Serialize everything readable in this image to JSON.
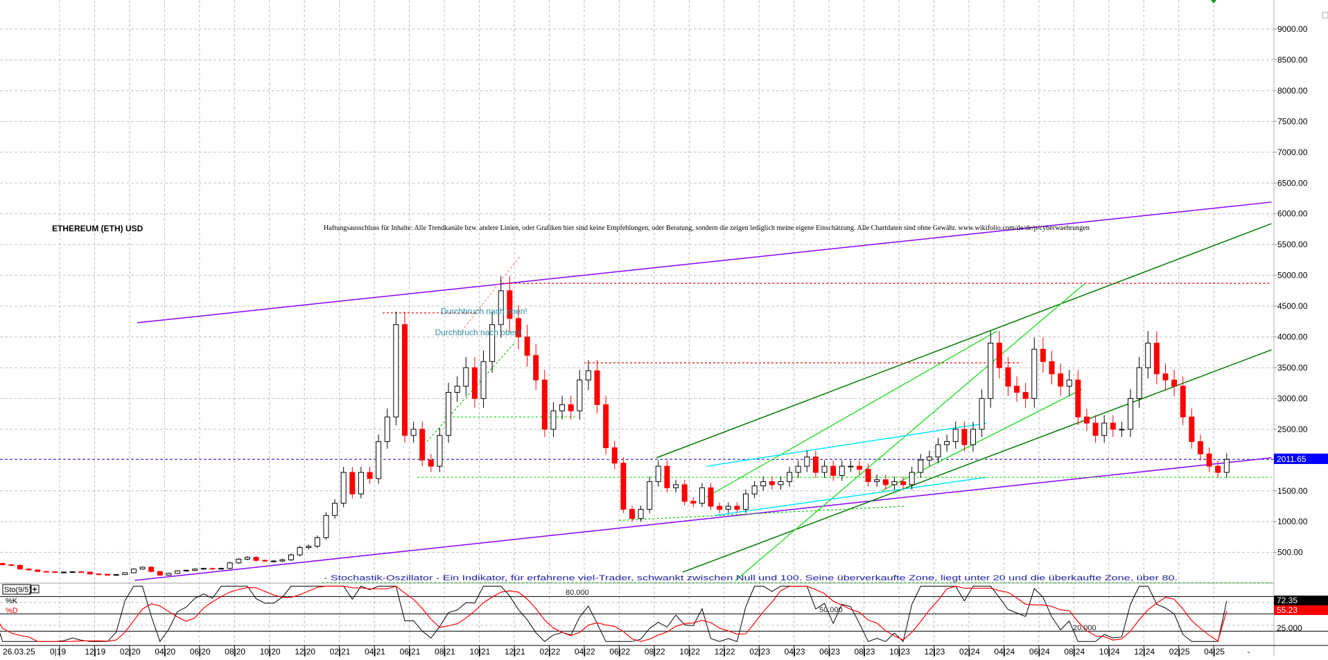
{
  "chart_data": {
    "type": "candlestick",
    "title": "ETHEREUM (ETH) USD",
    "disclaimer": "Haftungsausschluss für Inhalte: Alle Trendkanäle bzw. andere Linien, oder Grafiken hier sind keine Empfehlungen, oder Beratung, sondern die zeigen lediglich meine eigene Einschätzung. Alle Chartdaten sind ohne Gewähr.  www.wikifolio.com/de/de/p/cyberwaehrungen",
    "last_price": 2011.65,
    "last_price_label": "2011.65",
    "ylim": [
      0,
      9400
    ],
    "y_ticks": [
      "9000.00",
      "8500.00",
      "8000.00",
      "7500.00",
      "7000.00",
      "6500.00",
      "6000.00",
      "5500.00",
      "5000.00",
      "4500.00",
      "4000.00",
      "3500.00",
      "3000.00",
      "2500.00",
      "1500.00",
      "1000.00",
      "500.00"
    ],
    "x_ticks": [
      {
        "label": "26.03.25",
        "date": "2019-06-20"
      },
      {
        "label": "0|19",
        "date": "2019-10-01"
      },
      {
        "label": "12|19",
        "date": "2019-12-01"
      },
      {
        "label": "02|20",
        "date": "2020-02-01"
      },
      {
        "label": "04|20",
        "date": "2020-04-01"
      },
      {
        "label": "06|20",
        "date": "2020-06-01"
      },
      {
        "label": "08|20",
        "date": "2020-08-01"
      },
      {
        "label": "10|20",
        "date": "2020-10-01"
      },
      {
        "label": "12|20",
        "date": "2020-12-01"
      },
      {
        "label": "02|21",
        "date": "2021-02-01"
      },
      {
        "label": "04|21",
        "date": "2021-04-01"
      },
      {
        "label": "06|21",
        "date": "2021-06-01"
      },
      {
        "label": "08|21",
        "date": "2021-08-01"
      },
      {
        "label": "10|21",
        "date": "2021-10-01"
      },
      {
        "label": "12|21",
        "date": "2021-12-01"
      },
      {
        "label": "02|22",
        "date": "2022-02-01"
      },
      {
        "label": "04|22",
        "date": "2022-04-01"
      },
      {
        "label": "06|22",
        "date": "2022-06-01"
      },
      {
        "label": "08|22",
        "date": "2022-08-01"
      },
      {
        "label": "10|22",
        "date": "2022-10-01"
      },
      {
        "label": "12|22",
        "date": "2022-12-01"
      },
      {
        "label": "02|23",
        "date": "2023-02-01"
      },
      {
        "label": "04|23",
        "date": "2023-04-01"
      },
      {
        "label": "06|23",
        "date": "2023-06-01"
      },
      {
        "label": "08|23",
        "date": "2023-08-01"
      },
      {
        "label": "10|23",
        "date": "2023-10-01"
      },
      {
        "label": "12|23",
        "date": "2023-12-01"
      },
      {
        "label": "02|24",
        "date": "2024-02-01"
      },
      {
        "label": "04|24",
        "date": "2024-04-01"
      },
      {
        "label": "06|24",
        "date": "2024-06-01"
      },
      {
        "label": "08|24",
        "date": "2024-08-01"
      },
      {
        "label": "10|24",
        "date": "2024-10-01"
      },
      {
        "label": "12|24",
        "date": "2024-12-01"
      },
      {
        "label": "02|25",
        "date": "2025-02-01"
      },
      {
        "label": "04|25",
        "date": "2025-04-01"
      },
      {
        "label": "-",
        "date": "2025-06-15"
      }
    ],
    "price_series": {
      "months": [
        "2019-06",
        "2019-07",
        "2019-08",
        "2019-09",
        "2019-10",
        "2019-11",
        "2019-12",
        "2020-01",
        "2020-02",
        "2020-03",
        "2020-04",
        "2020-05",
        "2020-06",
        "2020-07",
        "2020-08",
        "2020-09",
        "2020-10",
        "2020-11",
        "2020-12",
        "2021-01",
        "2021-02",
        "2021-03",
        "2021-04",
        "2021-05",
        "2021-06",
        "2021-07",
        "2021-08",
        "2021-09",
        "2021-10",
        "2021-11",
        "2021-12",
        "2022-01",
        "2022-02",
        "2022-03",
        "2022-04",
        "2022-05",
        "2022-06",
        "2022-07",
        "2022-08",
        "2022-09",
        "2022-10",
        "2022-11",
        "2022-12",
        "2023-01",
        "2023-02",
        "2023-03",
        "2023-04",
        "2023-05",
        "2023-06",
        "2023-07",
        "2023-08",
        "2023-09",
        "2023-10",
        "2023-11",
        "2023-12",
        "2024-01",
        "2024-02",
        "2024-03",
        "2024-04",
        "2024-05",
        "2024-06",
        "2024-07",
        "2024-08",
        "2024-09",
        "2024-10",
        "2024-11",
        "2024-12",
        "2025-01",
        "2025-02",
        "2025-03",
        "2025-04"
      ],
      "closes": [
        [
          320,
          300
        ],
        [
          290,
          230
        ],
        [
          215,
          190
        ],
        [
          185,
          175
        ],
        [
          180,
          185
        ],
        [
          180,
          150
        ],
        [
          145,
          130
        ],
        [
          140,
          170
        ],
        [
          230,
          260
        ],
        [
          190,
          130
        ],
        [
          160,
          200
        ],
        [
          210,
          230
        ],
        [
          240,
          230
        ],
        [
          240,
          330
        ],
        [
          390,
          420
        ],
        [
          370,
          360
        ],
        [
          360,
          380
        ],
        [
          460,
          580
        ],
        [
          600,
          740
        ],
        [
          1100,
          1300
        ],
        [
          1800,
          1450
        ],
        [
          1800,
          1700
        ],
        [
          2300,
          2700
        ],
        [
          4200,
          2400
        ],
        [
          2500,
          2000
        ],
        [
          1900,
          2400
        ],
        [
          3100,
          3200
        ],
        [
          3500,
          3000
        ],
        [
          3600,
          4200
        ],
        [
          4750,
          4300
        ],
        [
          4000,
          3700
        ],
        [
          3300,
          2500
        ],
        [
          2800,
          2900
        ],
        [
          2800,
          3300
        ],
        [
          3450,
          2900
        ],
        [
          2200,
          1950
        ],
        [
          1200,
          1050
        ],
        [
          1200,
          1650
        ],
        [
          1900,
          1550
        ],
        [
          1600,
          1330
        ],
        [
          1300,
          1550
        ],
        [
          1250,
          1200
        ],
        [
          1250,
          1200
        ],
        [
          1450,
          1580
        ],
        [
          1650,
          1600
        ],
        [
          1650,
          1800
        ],
        [
          1900,
          2050
        ],
        [
          1800,
          1900
        ],
        [
          1750,
          1900
        ],
        [
          1900,
          1850
        ],
        [
          1650,
          1680
        ],
        [
          1600,
          1650
        ],
        [
          1600,
          1800
        ],
        [
          2000,
          2050
        ],
        [
          2250,
          2300
        ],
        [
          2500,
          2250
        ],
        [
          2500,
          3000
        ],
        [
          3900,
          3500
        ],
        [
          3200,
          3100
        ],
        [
          3000,
          3800
        ],
        [
          3600,
          3400
        ],
        [
          3200,
          3300
        ],
        [
          2700,
          2600
        ],
        [
          2400,
          2600
        ],
        [
          2500,
          2500
        ],
        [
          3000,
          3500
        ],
        [
          3900,
          3400
        ],
        [
          3300,
          3200
        ],
        [
          2700,
          2300
        ],
        [
          2100,
          1900
        ],
        [
          1800,
          2011.65
        ]
      ]
    },
    "trendlines": [
      {
        "color": "#8a00ff",
        "style": "solid",
        "from": [
          "2020-02-14",
          4230
        ],
        "to": [
          "2025-07-10",
          6190
        ]
      },
      {
        "color": "#8a00ff",
        "style": "solid",
        "from": [
          "2020-02-10",
          46
        ],
        "to": [
          "2025-07-10",
          2037
        ]
      },
      {
        "color": "#007a00",
        "style": "solid",
        "from": [
          "2022-08-05",
          2037
        ],
        "to": [
          "2025-07-10",
          5840
        ]
      },
      {
        "color": "#007a00",
        "style": "solid",
        "from": [
          "2022-09-20",
          180
        ],
        "to": [
          "2025-07-10",
          3790
        ]
      },
      {
        "color": "#33dd33",
        "style": "solid",
        "from": [
          "2022-12-20",
          40
        ],
        "to": [
          "2024-08-20",
          4870
        ]
      },
      {
        "color": "#33dd33",
        "style": "solid",
        "from": [
          "2022-11-01",
          1400
        ],
        "to": [
          "2024-03-20",
          4100
        ]
      },
      {
        "color": "#33dd33",
        "style": "solid",
        "from": [
          "2023-09-01",
          1500
        ],
        "to": [
          "2024-08-15",
          3150
        ]
      },
      {
        "color": "#00e5ff",
        "style": "solid",
        "from": [
          "2022-11-01",
          1900
        ],
        "to": [
          "2024-03-01",
          2600
        ]
      },
      {
        "color": "#00e5ff",
        "style": "solid",
        "from": [
          "2022-11-15",
          1100
        ],
        "to": [
          "2024-03-01",
          1720
        ]
      },
      {
        "color": "#00cc00",
        "style": "dotted",
        "from": [
          "2022-06-01",
          1020
        ],
        "to": [
          "2023-10-10",
          1250
        ]
      },
      {
        "color": "#00cc00",
        "style": "dotted",
        "from": [
          "2021-07-01",
          2300
        ],
        "to": [
          "2021-12-01",
          3900
        ]
      },
      {
        "color": "#ff8080",
        "style": "dotted",
        "from": [
          "2021-09-01",
          4100
        ],
        "to": [
          "2021-12-10",
          5300
        ]
      },
      {
        "color": "#e00000",
        "style": "dotted",
        "from": [
          "2021-11-10",
          4870
        ],
        "to": [
          "2025-07-10",
          4870
        ]
      },
      {
        "color": "#e00000",
        "style": "dotted",
        "from": [
          "2022-04-01",
          3580
        ],
        "to": [
          "2024-05-01",
          3580
        ]
      },
      {
        "color": "#e00000",
        "style": "dotted",
        "from": [
          "2021-04-15",
          4390
        ],
        "to": [
          "2021-09-25",
          4390
        ]
      },
      {
        "color": "#00dd00",
        "style": "dotted",
        "from": [
          "2021-06-15",
          1720
        ],
        "to": [
          "2025-07-10",
          1720
        ]
      },
      {
        "color": "#00dd00",
        "style": "dotted",
        "from": [
          "2021-08-01",
          2700
        ],
        "to": [
          "2022-03-20",
          2700
        ]
      },
      {
        "color": "#00dd00",
        "style": "dotted",
        "from": [
          "2021-01-01",
          10
        ],
        "to": [
          "2025-07-10",
          10
        ]
      }
    ],
    "annotations": [
      {
        "text": "Durchbruch nach oben!",
        "date": "2021-07-25",
        "price": 4370
      },
      {
        "text": "Durchbruch nach oben!",
        "date": "2021-07-15",
        "price": 4030
      }
    ],
    "indicator": {
      "name": "Sto(9/5)",
      "description": "- Stochastik-Oszillator - Ein Indikator, für erfahrene viel-Trader, schwankt zwischen Null und 100. Seine überverkaufte Zone, liegt unter 20 und die überkaufte Zone, über 80.",
      "k_label": "%K",
      "d_label": "%D",
      "levels": [
        {
          "value": 80,
          "label": "80.000"
        },
        {
          "value": 50,
          "label": "50.000"
        },
        {
          "value": 20,
          "label": "20.000"
        }
      ],
      "axis_label": "25.000",
      "k_last": "72.35",
      "d_last": "55.23",
      "ylim": [
        0,
        100
      ]
    },
    "colors": {
      "up": "#000000",
      "down": "#ff0000",
      "k": "#000000",
      "d": "#ff0000",
      "last_price_bg": "#0000ff",
      "grid": "#c0c0c0"
    }
  }
}
